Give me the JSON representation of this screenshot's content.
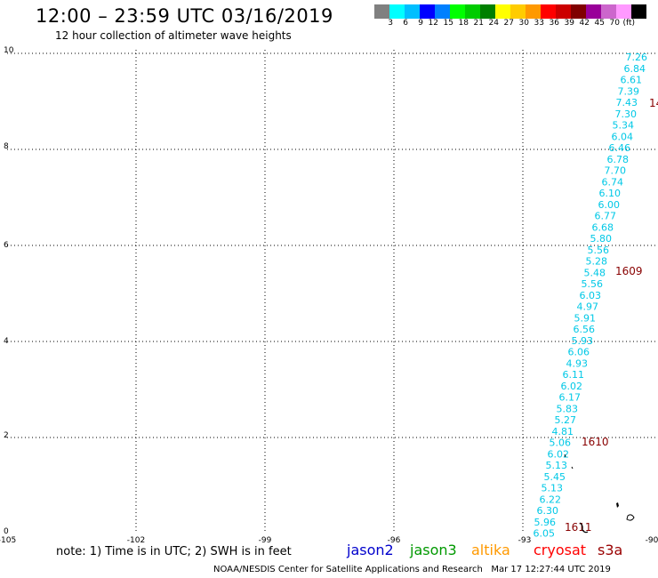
{
  "header": {
    "title": "12:00 – 23:59 UTC 03/16/2019",
    "subtitle": "12 hour collection of altimeter wave heights"
  },
  "colorbar": {
    "colors": [
      "#808080",
      "#00ffff",
      "#00bfff",
      "#0000ff",
      "#0080ff",
      "#00ff00",
      "#00cc00",
      "#008000",
      "#ffff00",
      "#ffcc00",
      "#ff9900",
      "#ff0000",
      "#cc0000",
      "#800000",
      "#990099",
      "#cc66cc",
      "#ff99ff",
      "#000000"
    ],
    "labels": [
      "3",
      "6",
      "9",
      "12",
      "15",
      "18",
      "21",
      "24",
      "27",
      "30",
      "33",
      "36",
      "39",
      "42",
      "45",
      "70",
      "(ft)"
    ]
  },
  "axes": {
    "y_labels": [
      "10",
      "8",
      "6",
      "4",
      "2",
      "0"
    ],
    "x_labels": [
      "-105",
      "-102",
      "-99",
      "-96",
      "-93",
      "-90"
    ]
  },
  "wave_heights": [
    "7.26",
    "6.84",
    "6.61",
    "7.39",
    "7.43",
    "7.30",
    "5.34",
    "6.04",
    "6.46",
    "6.78",
    "7.70",
    "6.74",
    "6.10",
    "6.00",
    "6.77",
    "6.68",
    "5.80",
    "5.56",
    "5.28",
    "5.48",
    "5.56",
    "6.03",
    "4.97",
    "5.91",
    "6.56",
    "5.93",
    "6.06",
    "4.93",
    "6.11",
    "6.02",
    "6.17",
    "5.83",
    "5.27",
    "4.81",
    "5.06",
    "6.02",
    "5.13",
    "5.45",
    "5.13",
    "6.22",
    "6.30",
    "5.96",
    "6.05"
  ],
  "pass_times": [
    "14",
    "1609",
    "1610",
    "1611"
  ],
  "footer": {
    "note": "note: 1) Time is in UTC; 2) SWH is in feet",
    "legend": [
      {
        "label": "jason2",
        "color": "#0000cc"
      },
      {
        "label": "jason3",
        "color": "#009900"
      },
      {
        "label": "altika",
        "color": "#ff9900"
      },
      {
        "label": "cryosat",
        "color": "#ff0000"
      },
      {
        "label": "s3a",
        "color": "#990000"
      }
    ],
    "credit": "NOAA/NESDIS Center for Satellite Applications and Research   Mar 17 12:27:44 UTC 2019"
  }
}
